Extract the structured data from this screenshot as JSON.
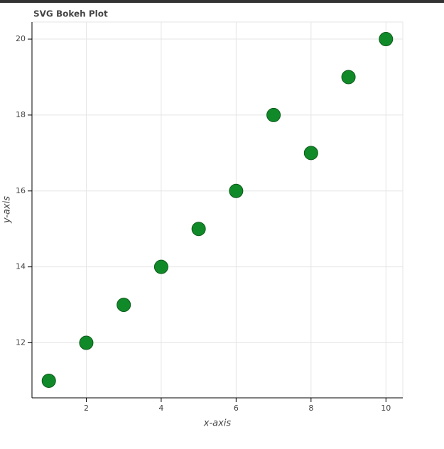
{
  "chart_data": {
    "type": "scatter",
    "title": "SVG Bokeh Plot",
    "x_label": "x-axis",
    "y_label": "y-axis",
    "x": [
      1,
      2,
      3,
      4,
      5,
      6,
      7,
      8,
      9,
      10
    ],
    "values": [
      11,
      12,
      13,
      14,
      15,
      16,
      18,
      17,
      19,
      20
    ],
    "color": "#108a28",
    "xlim": [
      0.55,
      10.45
    ],
    "xticks": [
      2,
      4,
      6,
      8,
      10
    ],
    "ylim": [
      10.55,
      20.45
    ],
    "yticks": [
      12,
      14,
      16,
      18,
      20
    ],
    "grid": true
  }
}
